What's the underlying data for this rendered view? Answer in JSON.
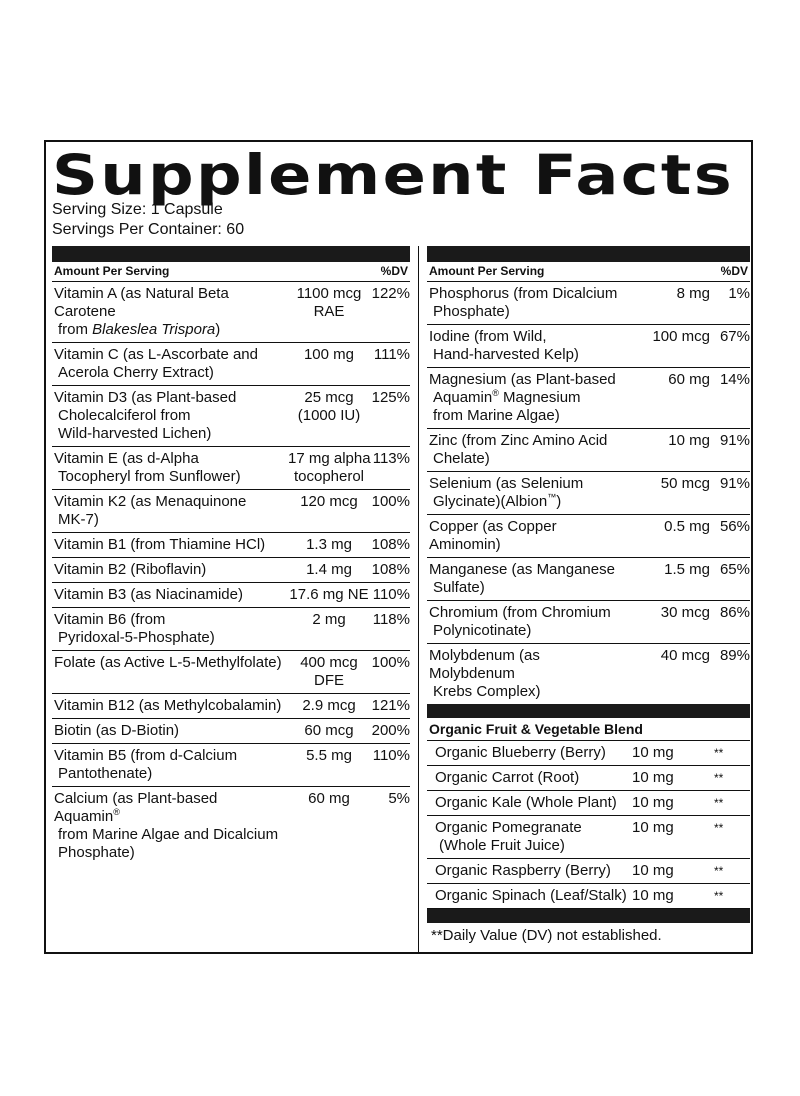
{
  "title": "Supplement Facts",
  "serving_size": "Serving Size: 1 Capsule",
  "servings_per_container": "Servings Per Container: 60",
  "header": {
    "amount_label": "Amount Per Serving",
    "dv_label": "%DV"
  },
  "left_rows": [
    {
      "name1": "Vitamin A (as Natural Beta Carotene",
      "name2a": "from ",
      "name2i": "Blakeslea Trispora",
      "name2b": ")",
      "amt1": "1100 mcg",
      "amt2": "RAE",
      "dv": "122%"
    },
    {
      "name1": "Vitamin C (as L-Ascorbate and",
      "name2": "Acerola Cherry Extract)",
      "amt1": "100 mg",
      "amt2": "",
      "dv": "111%"
    },
    {
      "name1": "Vitamin D3 (as Plant-based",
      "name2": "Cholecalciferol from",
      "name3": "Wild-harvested Lichen)",
      "amt1": "25 mcg",
      "amt2": "(1000 IU)",
      "dv": "125%"
    },
    {
      "name1": "Vitamin E (as d-Alpha",
      "name2": "Tocopheryl from Sunflower)",
      "amt1": "17 mg alpha",
      "amt2": "tocopherol",
      "dv": "113%"
    },
    {
      "name1": "Vitamin K2 (as Menaquinone",
      "name2": "MK-7)",
      "amt1": "120 mcg",
      "amt2": "",
      "dv": "100%"
    },
    {
      "name1": "Vitamin B1 (from Thiamine HCl)",
      "amt1": "1.3 mg",
      "dv": "108%"
    },
    {
      "name1": "Vitamin B2 (Riboflavin)",
      "amt1": "1.4 mg",
      "dv": "108%"
    },
    {
      "name1": "Vitamin B3 (as Niacinamide)",
      "amt1": "17.6 mg NE",
      "dv": "110%"
    },
    {
      "name1": "Vitamin B6 (from",
      "name2": "Pyridoxal-5-Phosphate)",
      "amt1": "2 mg",
      "dv": "118%"
    },
    {
      "name1": "Folate (as Active L-5-Methylfolate)",
      "amt1": "400 mcg",
      "amt2": "DFE",
      "dv": "100%"
    },
    {
      "name1": "Vitamin B12 (as Methylcobalamin)",
      "amt1": "2.9 mcg",
      "dv": "121%"
    },
    {
      "name1": "Biotin (as D-Biotin)",
      "amt1": "60 mcg",
      "dv": "200%"
    },
    {
      "name1": "Vitamin B5 (from d-Calcium",
      "name2": "Pantothenate)",
      "amt1": "5.5 mg",
      "dv": "110%"
    },
    {
      "name1": "Calcium (as Plant-based Aquamin",
      "name1sup": "®",
      "name2": "from Marine Algae and Dicalcium",
      "name3": "Phosphate)",
      "amt1": "60 mg",
      "dv": "5%"
    }
  ],
  "right_rows": [
    {
      "name1": "Phosphorus (from Dicalcium",
      "name2": "Phosphate)",
      "amt1": "8 mg",
      "dv": "1%"
    },
    {
      "name1": "Iodine (from Wild,",
      "name2": "Hand-harvested Kelp)",
      "amt1": "100 mcg",
      "dv": "67%"
    },
    {
      "name1": "Magnesium (as Plant-based",
      "name2": "Aquamin",
      "name2sup": "®",
      "name2b": " Magnesium",
      "name3": "from Marine Algae)",
      "amt1": "60 mg",
      "dv": "14%"
    },
    {
      "name1": "Zinc (from Zinc Amino Acid",
      "name2": "Chelate)",
      "amt1": "10 mg",
      "dv": "91%"
    },
    {
      "name1": "Selenium (as Selenium",
      "name2": "Glycinate)(Albion",
      "name2sup": "™",
      "name2b": ")",
      "amt1": "50 mcg",
      "dv": "91%"
    },
    {
      "name1": "Copper (as Copper Aminomin)",
      "amt1": "0.5 mg",
      "dv": "56%"
    },
    {
      "name1": "Manganese (as Manganese",
      "name2": "Sulfate)",
      "amt1": "1.5 mg",
      "dv": "65%"
    },
    {
      "name1": "Chromium (from Chromium",
      "name2": "Polynicotinate)",
      "amt1": "30 mcg",
      "dv": "86%"
    },
    {
      "name1": "Molybdenum (as Molybdenum",
      "name2": "Krebs Complex)",
      "amt1": "40 mcg",
      "dv": "89%"
    }
  ],
  "blend": {
    "title": "Organic Fruit & Vegetable Blend",
    "items": [
      {
        "name1": "Organic Blueberry (Berry)",
        "amt": "10 mg",
        "dv": "**"
      },
      {
        "name1": "Organic Carrot (Root)",
        "amt": "10 mg",
        "dv": "**"
      },
      {
        "name1": "Organic Kale (Whole Plant)",
        "amt": "10 mg",
        "dv": "**"
      },
      {
        "name1": "Organic Pomegranate",
        "name2": "(Whole Fruit Juice)",
        "amt": "10 mg",
        "dv": "**"
      },
      {
        "name1": "Organic Raspberry (Berry)",
        "amt": "10 mg",
        "dv": "**"
      },
      {
        "name1": "Organic Spinach (Leaf/Stalk)",
        "amt": "10 mg",
        "dv": "**"
      }
    ]
  },
  "footnote": "**Daily Value (DV) not established."
}
